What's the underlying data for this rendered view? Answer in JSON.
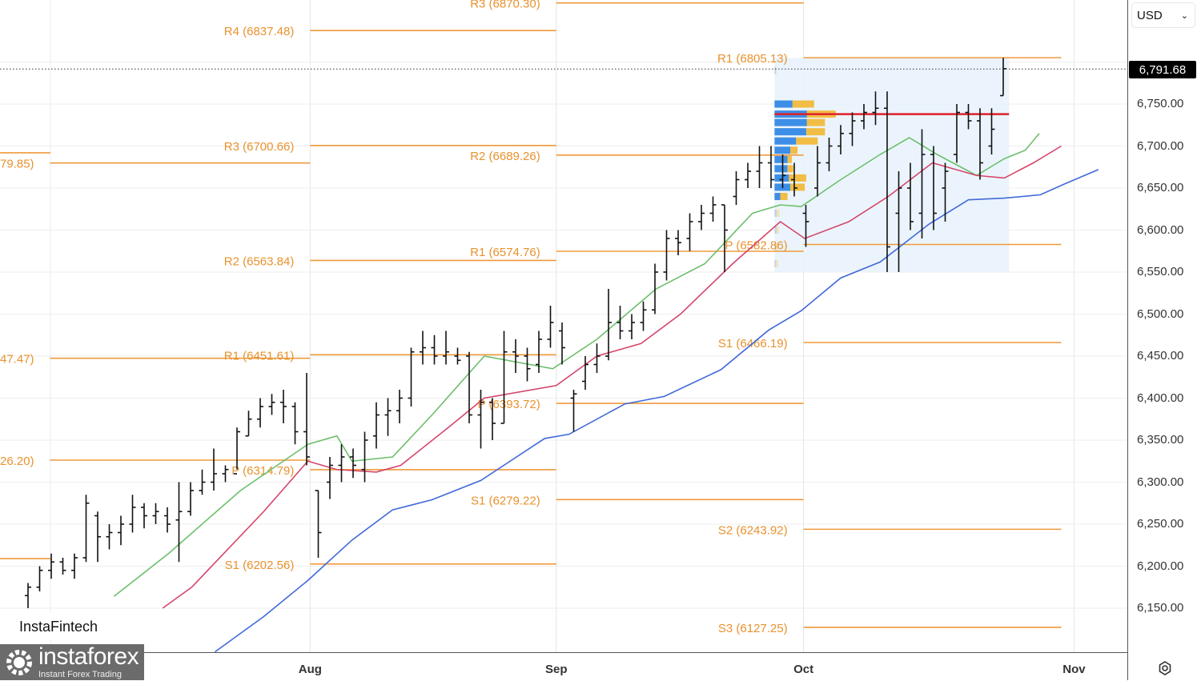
{
  "currency_select": {
    "value": "USD"
  },
  "current_price": {
    "value": 6791.68,
    "label": "6,791.68"
  },
  "branding": {
    "fintech": "InstaFintech",
    "logo_name": "instaforex",
    "logo_tagline": "Instant Forex Trading"
  },
  "chart_data": {
    "type": "candlestick-ohlc",
    "title": "",
    "yrange": [
      6100,
      6880
    ],
    "y_ticks": [
      {
        "value": 6750,
        "label": "6,750.00"
      },
      {
        "value": 6700,
        "label": "6,700.00"
      },
      {
        "value": 6650,
        "label": "6,650.00"
      },
      {
        "value": 6600,
        "label": "6,600.00"
      },
      {
        "value": 6550,
        "label": "6,550.00"
      },
      {
        "value": 6500,
        "label": "6,500.00"
      },
      {
        "value": 6450,
        "label": "6,450.00"
      },
      {
        "value": 6400,
        "label": "6,400.00"
      },
      {
        "value": 6350,
        "label": "6,350.00"
      },
      {
        "value": 6300,
        "label": "6,300.00"
      },
      {
        "value": 6250,
        "label": "6,250.00"
      },
      {
        "value": 6200,
        "label": "6,200.00"
      },
      {
        "value": 6150,
        "label": "6,150.00"
      }
    ],
    "x_ticks": [
      {
        "index": 24.3,
        "label": "Aug"
      },
      {
        "index": 45.5,
        "label": "Sep"
      },
      {
        "index": 66.8,
        "label": "Oct"
      },
      {
        "index": 90.1,
        "label": "Nov"
      }
    ],
    "ohlc": [
      [
        6165,
        6180,
        6150,
        6175
      ],
      [
        6175,
        6200,
        6170,
        6195
      ],
      [
        6195,
        6215,
        6185,
        6205
      ],
      [
        6205,
        6210,
        6190,
        6195
      ],
      [
        6195,
        6215,
        6185,
        6210
      ],
      [
        6210,
        6285,
        6205,
        6275
      ],
      [
        6260,
        6265,
        6205,
        6235
      ],
      [
        6235,
        6250,
        6220,
        6240
      ],
      [
        6240,
        6260,
        6225,
        6250
      ],
      [
        6250,
        6285,
        6240,
        6270
      ],
      [
        6270,
        6275,
        6245,
        6260
      ],
      [
        6260,
        6275,
        6250,
        6265
      ],
      [
        6260,
        6270,
        6240,
        6250
      ],
      [
        6255,
        6300,
        6205,
        6265
      ],
      [
        6265,
        6300,
        6260,
        6290
      ],
      [
        6290,
        6315,
        6285,
        6300
      ],
      [
        6300,
        6340,
        6290,
        6310
      ],
      [
        6310,
        6320,
        6300,
        6315
      ],
      [
        6310,
        6365,
        6315,
        6360
      ],
      [
        6355,
        6385,
        6355,
        6375
      ],
      [
        6375,
        6400,
        6365,
        6390
      ],
      [
        6390,
        6405,
        6380,
        6395
      ],
      [
        6395,
        6410,
        6370,
        6390
      ],
      [
        6390,
        6395,
        6345,
        6360
      ],
      [
        6360,
        6430,
        6320,
        6330
      ],
      [
        6290,
        6290,
        6210,
        6240
      ],
      [
        6300,
        6330,
        6280,
        6320
      ],
      [
        6320,
        6345,
        6300,
        6330
      ],
      [
        6330,
        6340,
        6305,
        6320
      ],
      [
        6315,
        6360,
        6300,
        6350
      ],
      [
        6355,
        6395,
        6340,
        6380
      ],
      [
        6380,
        6400,
        6355,
        6385
      ],
      [
        6385,
        6410,
        6370,
        6400
      ],
      [
        6400,
        6460,
        6390,
        6455
      ],
      [
        6455,
        6480,
        6440,
        6460
      ],
      [
        6460,
        6475,
        6440,
        6450
      ],
      [
        6450,
        6480,
        6440,
        6455
      ],
      [
        6450,
        6460,
        6440,
        6445
      ],
      [
        6450,
        6455,
        6370,
        6380
      ],
      [
        6380,
        6410,
        6340,
        6395
      ],
      [
        6395,
        6400,
        6350,
        6370
      ],
      [
        6370,
        6480,
        6370,
        6455
      ],
      [
        6455,
        6470,
        6430,
        6450
      ],
      [
        6450,
        6460,
        6420,
        6435
      ],
      [
        6440,
        6480,
        6430,
        6470
      ],
      [
        6470,
        6510,
        6460,
        6490
      ],
      [
        6480,
        6490,
        6440,
        6460
      ],
      [
        6400,
        6410,
        6360,
        6405
      ],
      [
        6420,
        6450,
        6410,
        6440
      ],
      [
        6440,
        6465,
        6430,
        6450
      ],
      [
        6450,
        6530,
        6445,
        6490
      ],
      [
        6490,
        6510,
        6470,
        6480
      ],
      [
        6480,
        6500,
        6470,
        6490
      ],
      [
        6490,
        6515,
        6480,
        6505
      ],
      [
        6505,
        6560,
        6500,
        6550
      ],
      [
        6550,
        6600,
        6540,
        6590
      ],
      [
        6590,
        6600,
        6570,
        6585
      ],
      [
        6590,
        6620,
        6575,
        6610
      ],
      [
        6610,
        6630,
        6600,
        6620
      ],
      [
        6620,
        6640,
        6610,
        6630
      ],
      [
        6630,
        6630,
        6550,
        6600
      ],
      [
        6640,
        6670,
        6630,
        6660
      ],
      [
        6660,
        6680,
        6650,
        6670
      ],
      [
        6670,
        6700,
        6650,
        6680
      ],
      [
        6680,
        6700,
        6650,
        6660
      ],
      [
        6660,
        6690,
        6650,
        6665
      ],
      [
        6660,
        6680,
        6640,
        6650
      ],
      [
        6620,
        6630,
        6580,
        6610
      ],
      [
        6650,
        6700,
        6640,
        6680
      ],
      [
        6680,
        6710,
        6670,
        6700
      ],
      [
        6700,
        6725,
        6690,
        6715
      ],
      [
        6715,
        6740,
        6700,
        6730
      ],
      [
        6730,
        6750,
        6720,
        6740
      ],
      [
        6740,
        6765,
        6725,
        6745
      ],
      [
        6745,
        6765,
        6550,
        6580
      ],
      [
        6620,
        6670,
        6550,
        6650
      ],
      [
        6650,
        6680,
        6600,
        6610
      ],
      [
        6620,
        6720,
        6590,
        6690
      ],
      [
        6690,
        6700,
        6600,
        6620
      ],
      [
        6650,
        6680,
        6610,
        6670
      ],
      [
        6690,
        6750,
        6680,
        6740
      ],
      [
        6740,
        6750,
        6720,
        6730
      ],
      [
        6730,
        6745,
        6660,
        6680
      ],
      [
        6700,
        6745,
        6690,
        6720
      ],
      [
        6760,
        6805,
        6760,
        6792
      ]
    ],
    "moving_averages": [
      {
        "name": "ma-fast",
        "color": "#6cbf6c",
        "points": [
          [
            7.4,
            6164
          ],
          [
            12.1,
            6215
          ],
          [
            18.3,
            6290
          ],
          [
            24.1,
            6345
          ],
          [
            26.6,
            6355
          ],
          [
            27.9,
            6325
          ],
          [
            31.4,
            6330
          ],
          [
            34.8,
            6380
          ],
          [
            39.3,
            6450
          ],
          [
            45.2,
            6435
          ],
          [
            49.0,
            6470
          ],
          [
            54.1,
            6530
          ],
          [
            58.3,
            6560
          ],
          [
            62.4,
            6620
          ],
          [
            64.8,
            6630
          ],
          [
            66.6,
            6628
          ],
          [
            70.0,
            6660
          ],
          [
            73.4,
            6690
          ],
          [
            75.9,
            6710
          ],
          [
            78.3,
            6690
          ],
          [
            81.7,
            6665
          ],
          [
            84.1,
            6685
          ],
          [
            85.9,
            6695
          ],
          [
            87.1,
            6715
          ]
        ]
      },
      {
        "name": "ma-mid",
        "color": "#d6456b",
        "points": [
          [
            11.6,
            6150
          ],
          [
            14.1,
            6175
          ],
          [
            20.3,
            6265
          ],
          [
            24.1,
            6325
          ],
          [
            26.6,
            6315
          ],
          [
            30.0,
            6312
          ],
          [
            32.1,
            6320
          ],
          [
            36.2,
            6365
          ],
          [
            39.3,
            6400
          ],
          [
            45.5,
            6415
          ],
          [
            49.0,
            6450
          ],
          [
            52.8,
            6465
          ],
          [
            56.2,
            6500
          ],
          [
            60.7,
            6560
          ],
          [
            64.8,
            6610
          ],
          [
            66.9,
            6590
          ],
          [
            70.7,
            6610
          ],
          [
            74.1,
            6640
          ],
          [
            77.9,
            6680
          ],
          [
            81.7,
            6665
          ],
          [
            84.1,
            6662
          ],
          [
            86.6,
            6680
          ],
          [
            89.0,
            6700
          ]
        ]
      },
      {
        "name": "ma-slow",
        "color": "#4169d8",
        "points": [
          [
            16.1,
            6098
          ],
          [
            20.3,
            6140
          ],
          [
            24.1,
            6183
          ],
          [
            27.9,
            6231
          ],
          [
            31.4,
            6267
          ],
          [
            34.8,
            6279
          ],
          [
            39.0,
            6302
          ],
          [
            44.5,
            6352
          ],
          [
            46.6,
            6357
          ],
          [
            51.4,
            6393
          ],
          [
            54.8,
            6402
          ],
          [
            59.7,
            6434
          ],
          [
            63.8,
            6481
          ],
          [
            66.6,
            6504
          ],
          [
            70.0,
            6543
          ],
          [
            73.4,
            6562
          ],
          [
            77.6,
            6607
          ],
          [
            81.0,
            6636
          ],
          [
            84.1,
            6638
          ],
          [
            87.2,
            6642
          ],
          [
            89.3,
            6655
          ],
          [
            92.2,
            6672
          ]
        ]
      }
    ],
    "pivot_levels": [
      {
        "label": "79.85)",
        "value": 6679.85,
        "from": 1.9,
        "to": 24.3
      },
      {
        "label": "47.47)",
        "value": 6447.47,
        "from": 1.9,
        "to": 24.3
      },
      {
        "label": "26.20)",
        "value": 6326.2,
        "from": 1.9,
        "to": 24.3
      },
      {
        "label": "R4 (6837.48)",
        "value": 6837.48,
        "from": 24.3,
        "to": 45.5
      },
      {
        "label": "R3 (6700.66)",
        "value": 6700.66,
        "from": 24.3,
        "to": 45.5
      },
      {
        "label": "R2 (6563.84)",
        "value": 6563.84,
        "from": 24.3,
        "to": 45.5
      },
      {
        "label": "R1 (6451.61)",
        "value": 6451.61,
        "from": 24.3,
        "to": 45.5
      },
      {
        "label": "P (6314.79)",
        "value": 6314.79,
        "from": 24.3,
        "to": 45.5
      },
      {
        "label": "S1 (6202.56)",
        "value": 6202.56,
        "from": 24.3,
        "to": 45.5
      },
      {
        "label": "R3 (6870.30)",
        "value": 6870.3,
        "from": 45.5,
        "to": 66.8
      },
      {
        "label": "R2 (6689.26)",
        "value": 6689.26,
        "from": 45.5,
        "to": 66.8
      },
      {
        "label": "R1 (6574.76)",
        "value": 6574.76,
        "from": 45.5,
        "to": 66.8
      },
      {
        "label": "P (6393.72)",
        "value": 6393.72,
        "from": 45.5,
        "to": 66.8
      },
      {
        "label": "S1 (6279.22)",
        "value": 6279.22,
        "from": 45.5,
        "to": 66.8
      },
      {
        "label": "R1 (6805.13)",
        "value": 6805.13,
        "from": 66.8,
        "to": 89.0
      },
      {
        "label": "P (6582.86)",
        "value": 6582.86,
        "from": 66.8,
        "to": 89.0
      },
      {
        "label": "S1 (6466.19)",
        "value": 6466.19,
        "from": 66.8,
        "to": 89.0
      },
      {
        "label": "S2 (6243.92)",
        "value": 6243.92,
        "from": 66.8,
        "to": 89.0
      },
      {
        "label": "S3 (6127.25)",
        "value": 6127.25,
        "from": 66.8,
        "to": 89.0
      }
    ],
    "volume_profile": {
      "from": 64.3,
      "to": 84.5,
      "high": 6805,
      "low": 6550,
      "poc": 6738,
      "rows": [
        {
          "price": 6790,
          "buy": 2,
          "sell": 1
        },
        {
          "price": 6750,
          "buy": 25,
          "sell": 30
        },
        {
          "price": 6738,
          "buy": 45,
          "sell": 40
        },
        {
          "price": 6728,
          "buy": 45,
          "sell": 25
        },
        {
          "price": 6717,
          "buy": 44,
          "sell": 26
        },
        {
          "price": 6706,
          "buy": 30,
          "sell": 30
        },
        {
          "price": 6695,
          "buy": 22,
          "sell": 10
        },
        {
          "price": 6684,
          "buy": 18,
          "sell": 6
        },
        {
          "price": 6673,
          "buy": 18,
          "sell": 8
        },
        {
          "price": 6662,
          "buy": 20,
          "sell": 24
        },
        {
          "price": 6651,
          "buy": 22,
          "sell": 20
        },
        {
          "price": 6640,
          "buy": 8,
          "sell": 10
        },
        {
          "price": 6620,
          "buy": 3,
          "sell": 4
        },
        {
          "price": 6600,
          "buy": 3,
          "sell": 3
        },
        {
          "price": 6580,
          "buy": 2,
          "sell": 3
        },
        {
          "price": 6560,
          "buy": 2,
          "sell": 3
        }
      ]
    }
  }
}
